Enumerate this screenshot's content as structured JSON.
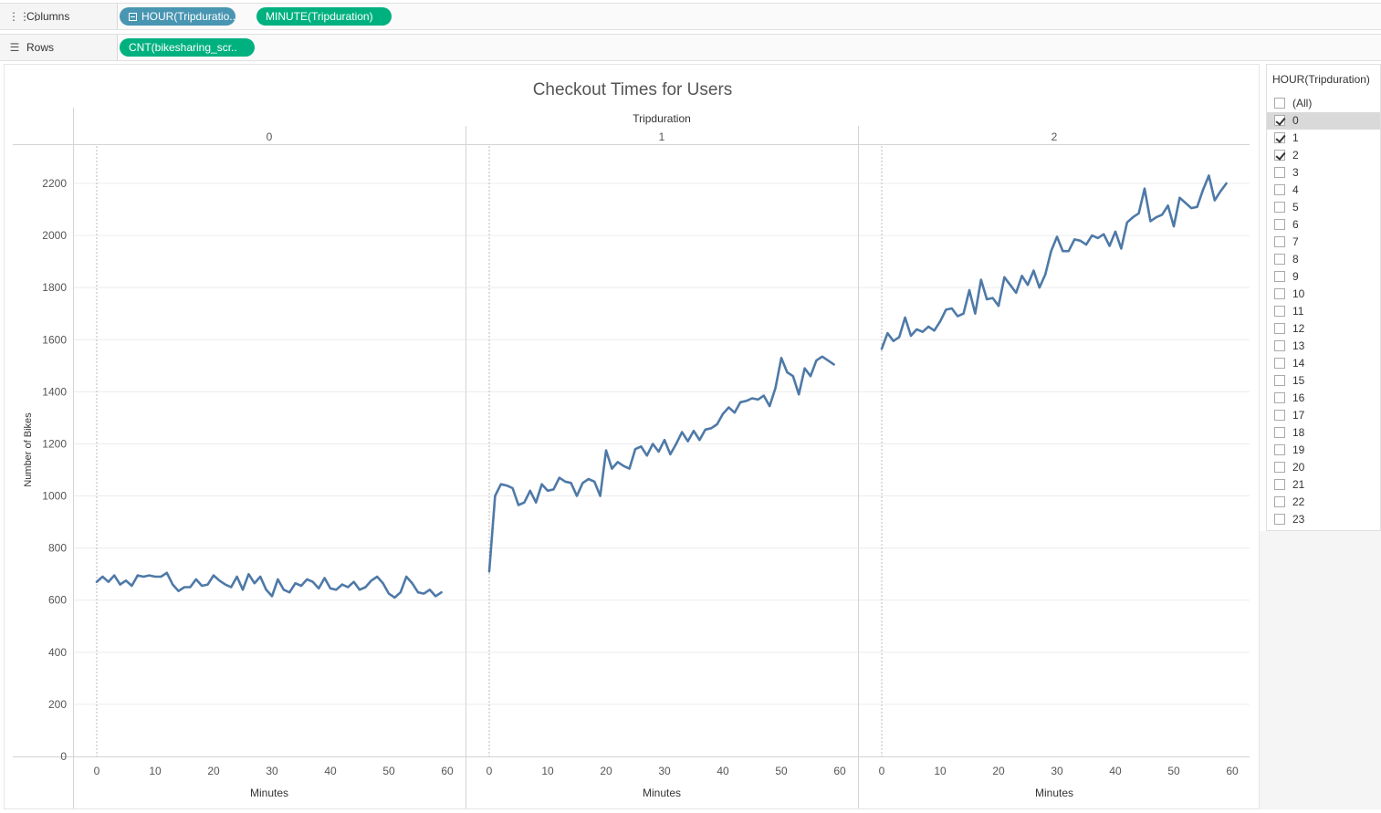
{
  "shelves": {
    "columns": {
      "label": "Columns",
      "pills": [
        "HOUR(Tripduratio..",
        "MINUTE(Tripduration)"
      ]
    },
    "rows": {
      "label": "Rows",
      "pills": [
        "CNT(bikesharing_scr.."
      ]
    }
  },
  "legend": {
    "title": "HOUR(Tripduration)",
    "items": [
      {
        "label": "(All)",
        "checked": false
      },
      {
        "label": "0",
        "checked": true
      },
      {
        "label": "1",
        "checked": true
      },
      {
        "label": "2",
        "checked": true
      },
      {
        "label": "3",
        "checked": false
      },
      {
        "label": "4",
        "checked": false
      },
      {
        "label": "5",
        "checked": false
      },
      {
        "label": "6",
        "checked": false
      },
      {
        "label": "7",
        "checked": false
      },
      {
        "label": "8",
        "checked": false
      },
      {
        "label": "9",
        "checked": false
      },
      {
        "label": "10",
        "checked": false
      },
      {
        "label": "11",
        "checked": false
      },
      {
        "label": "12",
        "checked": false
      },
      {
        "label": "13",
        "checked": false
      },
      {
        "label": "14",
        "checked": false
      },
      {
        "label": "15",
        "checked": false
      },
      {
        "label": "16",
        "checked": false
      },
      {
        "label": "17",
        "checked": false
      },
      {
        "label": "18",
        "checked": false
      },
      {
        "label": "19",
        "checked": false
      },
      {
        "label": "20",
        "checked": false
      },
      {
        "label": "21",
        "checked": false
      },
      {
        "label": "22",
        "checked": false
      },
      {
        "label": "23",
        "checked": false
      }
    ]
  },
  "colors": {
    "line": "#4e79a7",
    "pill_blue": "#4996b2",
    "pill_green": "#00b180"
  },
  "chart_data": {
    "type": "line",
    "title": "Checkout Times for Users",
    "header_label": "Tripduration",
    "ylabel": "Number of Bikes",
    "xlabel": "Minutes",
    "ylim": [
      0,
      2300
    ],
    "yticks": [
      0,
      200,
      400,
      600,
      800,
      1000,
      1200,
      1400,
      1600,
      1800,
      2000,
      2200
    ],
    "xlim": [
      0,
      60
    ],
    "xticks": [
      0,
      10,
      20,
      30,
      40,
      50,
      60
    ],
    "panels": [
      {
        "label": "0",
        "y": [
          670,
          690,
          670,
          695,
          660,
          675,
          655,
          695,
          690,
          695,
          690,
          690,
          705,
          660,
          635,
          650,
          650,
          680,
          655,
          660,
          695,
          675,
          660,
          650,
          690,
          640,
          700,
          665,
          690,
          640,
          615,
          680,
          640,
          630,
          665,
          655,
          680,
          670,
          645,
          685,
          645,
          640,
          660,
          650,
          670,
          640,
          650,
          675,
          690,
          665,
          625,
          610,
          630,
          690,
          665,
          630,
          625,
          640,
          615,
          630
        ]
      },
      {
        "label": "1",
        "y": [
          710,
          1000,
          1045,
          1040,
          1030,
          965,
          975,
          1020,
          975,
          1045,
          1020,
          1025,
          1070,
          1055,
          1050,
          1000,
          1050,
          1065,
          1055,
          1000,
          1175,
          1105,
          1130,
          1115,
          1105,
          1180,
          1190,
          1155,
          1200,
          1170,
          1215,
          1160,
          1200,
          1245,
          1210,
          1250,
          1215,
          1255,
          1260,
          1275,
          1315,
          1340,
          1320,
          1360,
          1365,
          1375,
          1370,
          1385,
          1345,
          1415,
          1530,
          1475,
          1460,
          1390,
          1490,
          1460,
          1520,
          1535,
          1520,
          1505
        ]
      },
      {
        "label": "2",
        "y": [
          1565,
          1625,
          1595,
          1610,
          1685,
          1615,
          1640,
          1630,
          1650,
          1635,
          1670,
          1715,
          1720,
          1690,
          1700,
          1790,
          1700,
          1830,
          1755,
          1760,
          1730,
          1840,
          1810,
          1780,
          1845,
          1810,
          1865,
          1800,
          1850,
          1940,
          1995,
          1940,
          1940,
          1985,
          1980,
          1965,
          2000,
          1990,
          2005,
          1960,
          2015,
          1950,
          2050,
          2070,
          2085,
          2180,
          2055,
          2070,
          2080,
          2115,
          2035,
          2145,
          2125,
          2105,
          2110,
          2175,
          2230,
          2135,
          2170,
          2200
        ]
      }
    ]
  }
}
